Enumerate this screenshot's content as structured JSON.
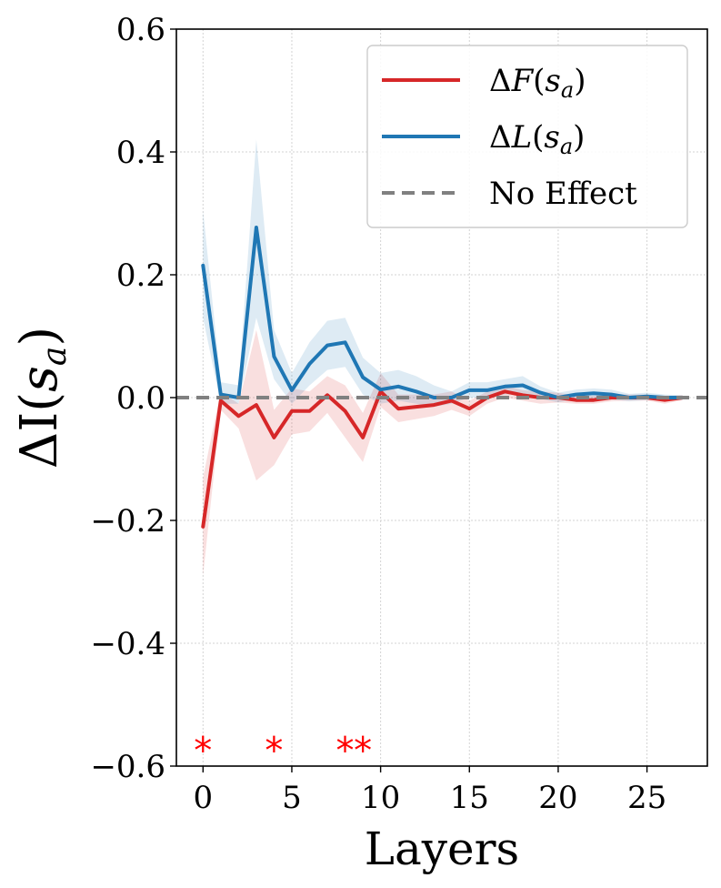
{
  "chart_data": {
    "type": "line",
    "title": "",
    "xlabel": "Layers",
    "ylabel": "ΔI(s_a)",
    "xlim": [
      -1.5,
      28.4
    ],
    "ylim": [
      -0.6,
      0.6
    ],
    "xticks": [
      0,
      5,
      10,
      15,
      20,
      25
    ],
    "xtick_labels": [
      "0",
      "5",
      "10",
      "15",
      "20",
      "25"
    ],
    "yticks": [
      0.6,
      0.4,
      0.2,
      0.0,
      -0.2,
      -0.4,
      -0.6
    ],
    "ytick_labels": [
      "0.6",
      "0.4",
      "0.2",
      "0.0",
      "−0.2",
      "−0.4",
      "−0.6"
    ],
    "grid": true,
    "legend_position": "top-right",
    "x": [
      0,
      1,
      2,
      3,
      4,
      5,
      6,
      7,
      8,
      9,
      10,
      11,
      12,
      13,
      14,
      15,
      16,
      17,
      18,
      19,
      20,
      21,
      22,
      23,
      24,
      25,
      26,
      27
    ],
    "series": [
      {
        "name": "ΔF(s_a)",
        "color": "#d62728",
        "values": [
          -0.21,
          -0.005,
          -0.03,
          -0.012,
          -0.065,
          -0.022,
          -0.022,
          0.004,
          -0.022,
          -0.065,
          0.01,
          -0.018,
          -0.015,
          -0.012,
          -0.005,
          -0.018,
          0.0,
          0.01,
          0.004,
          0.0,
          0.0,
          -0.004,
          -0.004,
          0.0,
          0.0,
          0.0,
          -0.004,
          0.0
        ],
        "lower": [
          -0.29,
          -0.02,
          -0.05,
          -0.135,
          -0.11,
          -0.06,
          -0.055,
          -0.025,
          -0.065,
          -0.105,
          -0.015,
          -0.04,
          -0.035,
          -0.03,
          -0.02,
          -0.03,
          -0.01,
          0.0,
          -0.005,
          -0.01,
          -0.008,
          -0.01,
          -0.01,
          -0.006,
          -0.005,
          -0.005,
          -0.01,
          -0.004
        ],
        "upper": [
          -0.13,
          0.01,
          -0.01,
          0.11,
          -0.02,
          0.015,
          0.01,
          0.035,
          0.02,
          -0.025,
          0.04,
          0.005,
          0.005,
          0.005,
          0.01,
          -0.005,
          0.01,
          0.02,
          0.012,
          0.01,
          0.008,
          0.003,
          0.003,
          0.006,
          0.005,
          0.005,
          0.002,
          0.004
        ]
      },
      {
        "name": "ΔL(s_a)",
        "color": "#1f77b4",
        "values": [
          0.215,
          0.005,
          0.0,
          0.277,
          0.067,
          0.012,
          0.055,
          0.085,
          0.09,
          0.033,
          0.013,
          0.018,
          0.01,
          0.0,
          0.0,
          0.012,
          0.012,
          0.018,
          0.02,
          0.008,
          0.0,
          0.005,
          0.007,
          0.005,
          0.0,
          0.002,
          0.0,
          0.0
        ],
        "lower": [
          0.13,
          -0.01,
          -0.01,
          0.13,
          0.03,
          -0.01,
          0.02,
          0.045,
          0.05,
          0.005,
          -0.01,
          -0.005,
          -0.01,
          -0.015,
          -0.01,
          0.0,
          0.0,
          0.005,
          0.005,
          -0.002,
          -0.008,
          -0.003,
          -0.001,
          -0.003,
          -0.006,
          -0.004,
          -0.005,
          -0.004
        ],
        "upper": [
          0.305,
          0.025,
          0.02,
          0.42,
          0.11,
          0.04,
          0.09,
          0.125,
          0.13,
          0.065,
          0.04,
          0.045,
          0.035,
          0.02,
          0.01,
          0.025,
          0.025,
          0.03,
          0.035,
          0.018,
          0.008,
          0.013,
          0.015,
          0.013,
          0.006,
          0.008,
          0.005,
          0.004
        ]
      }
    ],
    "reference_line": {
      "name": "No Effect",
      "y": 0.0,
      "color": "#808080",
      "style": "dashed"
    },
    "legend": [
      "ΔF(s_a)",
      "ΔL(s_a)",
      "No Effect"
    ],
    "annotations": [
      {
        "text": "*",
        "x": 0,
        "y": -0.555,
        "color": "#ff0000"
      },
      {
        "text": "*",
        "x": 4,
        "y": -0.555,
        "color": "#ff0000"
      },
      {
        "text": "*",
        "x": 8,
        "y": -0.555,
        "color": "#ff0000"
      },
      {
        "text": "*",
        "x": 9,
        "y": -0.555,
        "color": "#ff0000"
      }
    ]
  }
}
